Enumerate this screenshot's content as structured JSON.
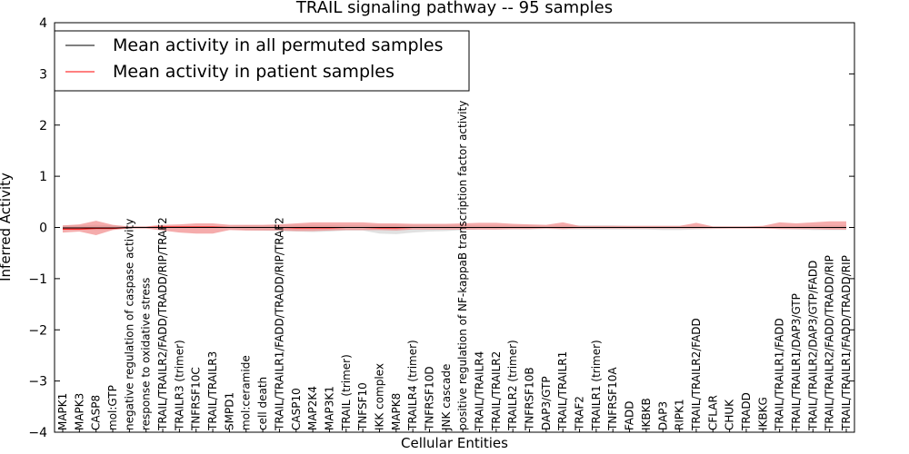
{
  "chart_data": {
    "type": "line",
    "title": "TRAIL signaling pathway -- 95 samples",
    "xlabel": "Cellular Entities",
    "ylabel": "Inferred Activity",
    "ylim": [
      -4,
      4
    ],
    "yticks": [
      -4,
      -3,
      -2,
      -1,
      0,
      1,
      2,
      3,
      4
    ],
    "grid": false,
    "legend_position": "top-left",
    "colors": {
      "permuted_line": "#000000",
      "patient_line": "#ff0000",
      "patient_band": "#f08080",
      "permuted_band": "#c8c8c8"
    },
    "categories": [
      "MAPK1",
      "MAPK3",
      "CASP8",
      "mol:GTP",
      "negative regulation of caspase activity",
      "response to oxidative stress",
      "TRAIL/TRAILR2/FADD/TRADD/RIP/TRAF2",
      "TRAILR3 (trimer)",
      "TNFRSF10C",
      "TRAIL/TRAILR3",
      "SMPD1",
      "mol:ceramide",
      "cell death",
      "TRAIL/TRAILR1/FADD/TRADD/RIP/TRAF2",
      "CASP10",
      "MAP2K4",
      "MAP3K1",
      "TRAIL (trimer)",
      "TNFSF10",
      "IKK complex",
      "MAPK8",
      "TRAILR4 (trimer)",
      "TNFRSF10D",
      "JNK cascade",
      "positive regulation of NF-kappaB transcription factor activity",
      "TRAIL/TRAILR4",
      "TRAIL/TRAILR2",
      "TRAILR2 (trimer)",
      "TNFRSF10B",
      "DAP3/GTP",
      "TRAIL/TRAILR1",
      "TRAF2",
      "TRAILR1 (trimer)",
      "TNFRSF10A",
      "FADD",
      "IKBKB",
      "DAP3",
      "RIPK1",
      "TRAIL/TRAILR2/FADD",
      "CFLAR",
      "CHUK",
      "TRADD",
      "IKBKG",
      "TRAIL/TRAILR1/FADD",
      "TRAIL/TRAILR1/DAP3/GTP",
      "TRAIL/TRAILR2/DAP3/GTP/FADD",
      "TRAIL/TRAILR2/FADD/TRADD/RIP",
      "TRAIL/TRAILR1/FADD/TRADD/RIP"
    ],
    "series": [
      {
        "name": "Mean activity in all permuted samples",
        "values": [
          -0.01,
          -0.01,
          -0.01,
          -0.01,
          0.0,
          0.0,
          0.0,
          0.0,
          0.0,
          0.0,
          0.0,
          0.0,
          0.0,
          0.0,
          0.0,
          0.0,
          0.0,
          0.0,
          0.0,
          0.0,
          0.0,
          0.0,
          0.0,
          0.0,
          0.0,
          0.0,
          0.0,
          0.0,
          0.0,
          0.0,
          0.0,
          0.0,
          0.0,
          0.0,
          0.0,
          0.0,
          0.0,
          0.0,
          0.0,
          0.0,
          0.0,
          0.0,
          0.0,
          0.0,
          0.0,
          0.0,
          0.0,
          0.0
        ],
        "band_low": [
          -0.04,
          -0.04,
          -0.05,
          -0.04,
          -0.02,
          -0.02,
          -0.02,
          -0.02,
          -0.02,
          -0.02,
          -0.03,
          -0.05,
          -0.06,
          -0.07,
          -0.08,
          -0.09,
          -0.08,
          -0.06,
          -0.06,
          -0.12,
          -0.13,
          -0.1,
          -0.08,
          -0.07,
          -0.05,
          -0.04,
          -0.04,
          -0.04,
          -0.04,
          -0.03,
          -0.04,
          -0.04,
          -0.04,
          -0.04,
          -0.04,
          -0.04,
          -0.05,
          -0.05,
          -0.04,
          -0.03,
          -0.02,
          -0.02,
          -0.02,
          -0.03,
          -0.04,
          -0.05,
          -0.05,
          -0.05
        ],
        "band_high": [
          0.04,
          0.04,
          0.05,
          0.04,
          0.02,
          0.02,
          0.02,
          0.02,
          0.02,
          0.02,
          0.03,
          0.04,
          0.04,
          0.05,
          0.05,
          0.05,
          0.05,
          0.05,
          0.05,
          0.05,
          0.05,
          0.05,
          0.05,
          0.05,
          0.05,
          0.04,
          0.04,
          0.04,
          0.04,
          0.03,
          0.04,
          0.04,
          0.04,
          0.04,
          0.03,
          0.03,
          0.03,
          0.03,
          0.03,
          0.02,
          0.02,
          0.02,
          0.02,
          0.03,
          0.03,
          0.04,
          0.04,
          0.04
        ]
      },
      {
        "name": "Mean activity in patient samples",
        "values": [
          -0.03,
          -0.03,
          -0.02,
          -0.02,
          0.0,
          0.0,
          0.01,
          0.01,
          0.01,
          0.01,
          0.0,
          0.0,
          0.0,
          0.0,
          -0.01,
          -0.01,
          -0.01,
          0.0,
          0.0,
          -0.01,
          -0.01,
          0.0,
          0.0,
          0.0,
          0.0,
          0.0,
          0.0,
          0.0,
          0.0,
          0.0,
          0.0,
          0.0,
          0.0,
          0.0,
          0.0,
          0.0,
          0.0,
          0.0,
          0.0,
          0.0,
          0.0,
          0.0,
          0.0,
          0.0,
          0.0,
          0.0,
          0.0,
          0.0
        ],
        "band_low": [
          -0.1,
          -0.08,
          -0.15,
          -0.05,
          -0.02,
          -0.02,
          -0.06,
          -0.1,
          -0.12,
          -0.12,
          -0.05,
          -0.06,
          -0.06,
          -0.06,
          -0.07,
          -0.07,
          -0.06,
          -0.05,
          -0.05,
          -0.05,
          -0.06,
          -0.04,
          -0.04,
          -0.04,
          -0.04,
          -0.04,
          -0.04,
          -0.03,
          -0.03,
          -0.02,
          -0.03,
          -0.02,
          -0.02,
          -0.02,
          -0.02,
          -0.02,
          -0.02,
          -0.02,
          -0.02,
          -0.02,
          -0.02,
          -0.02,
          -0.02,
          -0.03,
          -0.03,
          -0.03,
          -0.04,
          -0.04
        ],
        "band_high": [
          0.04,
          0.06,
          0.13,
          0.05,
          0.02,
          0.02,
          0.05,
          0.06,
          0.08,
          0.08,
          0.05,
          0.05,
          0.05,
          0.06,
          0.08,
          0.1,
          0.1,
          0.1,
          0.1,
          0.08,
          0.08,
          0.07,
          0.07,
          0.07,
          0.08,
          0.09,
          0.09,
          0.07,
          0.06,
          0.05,
          0.1,
          0.03,
          0.03,
          0.03,
          0.03,
          0.03,
          0.03,
          0.03,
          0.09,
          0.02,
          0.02,
          0.02,
          0.03,
          0.1,
          0.08,
          0.1,
          0.12,
          0.12
        ]
      }
    ]
  }
}
